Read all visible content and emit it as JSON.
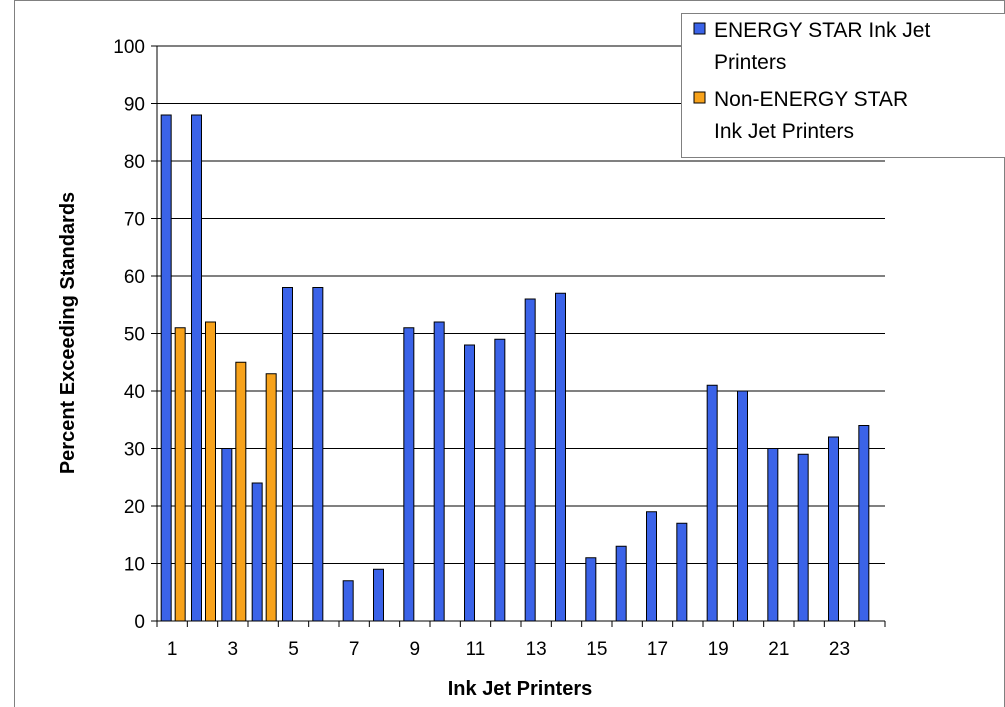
{
  "chart_data": {
    "type": "bar",
    "xlabel": "Ink Jet Printers",
    "ylabel": "Percent Exceeding Standards",
    "ylim": [
      0,
      100
    ],
    "yticks": [
      0,
      10,
      20,
      30,
      40,
      50,
      60,
      70,
      80,
      90,
      100
    ],
    "categories": [
      1,
      2,
      3,
      4,
      5,
      6,
      7,
      8,
      9,
      10,
      11,
      12,
      13,
      14,
      15,
      16,
      17,
      18,
      19,
      20,
      21,
      22,
      23,
      24
    ],
    "xtick_labels": [
      "1",
      "",
      "3",
      "",
      "5",
      "",
      "7",
      "",
      "9",
      "",
      "11",
      "",
      "13",
      "",
      "15",
      "",
      "17",
      "",
      "19",
      "",
      "21",
      "",
      "23",
      ""
    ],
    "grid": true,
    "legend_position": "top-right",
    "series": [
      {
        "name": "ENERGY STAR Ink Jet Printers",
        "color": "#3b63e8",
        "values": [
          88,
          88,
          30,
          24,
          58,
          58,
          7,
          9,
          51,
          52,
          48,
          49,
          56,
          57,
          11,
          13,
          19,
          17,
          41,
          40,
          30,
          29,
          32,
          34
        ]
      },
      {
        "name": "Non-ENERGY STAR Ink Jet Printers",
        "color": "#f7a21b",
        "values": [
          51,
          52,
          45,
          43,
          null,
          null,
          null,
          null,
          null,
          null,
          null,
          null,
          null,
          null,
          null,
          null,
          null,
          null,
          null,
          null,
          null,
          null,
          null,
          null
        ]
      }
    ],
    "legend": {
      "items": [
        {
          "lines": [
            "ENERGY STAR Ink Jet",
            "Printers"
          ],
          "color": "#3b63e8"
        },
        {
          "lines": [
            "Non-ENERGY STAR",
            "Ink Jet Printers"
          ],
          "color": "#f7a21b"
        }
      ]
    }
  }
}
